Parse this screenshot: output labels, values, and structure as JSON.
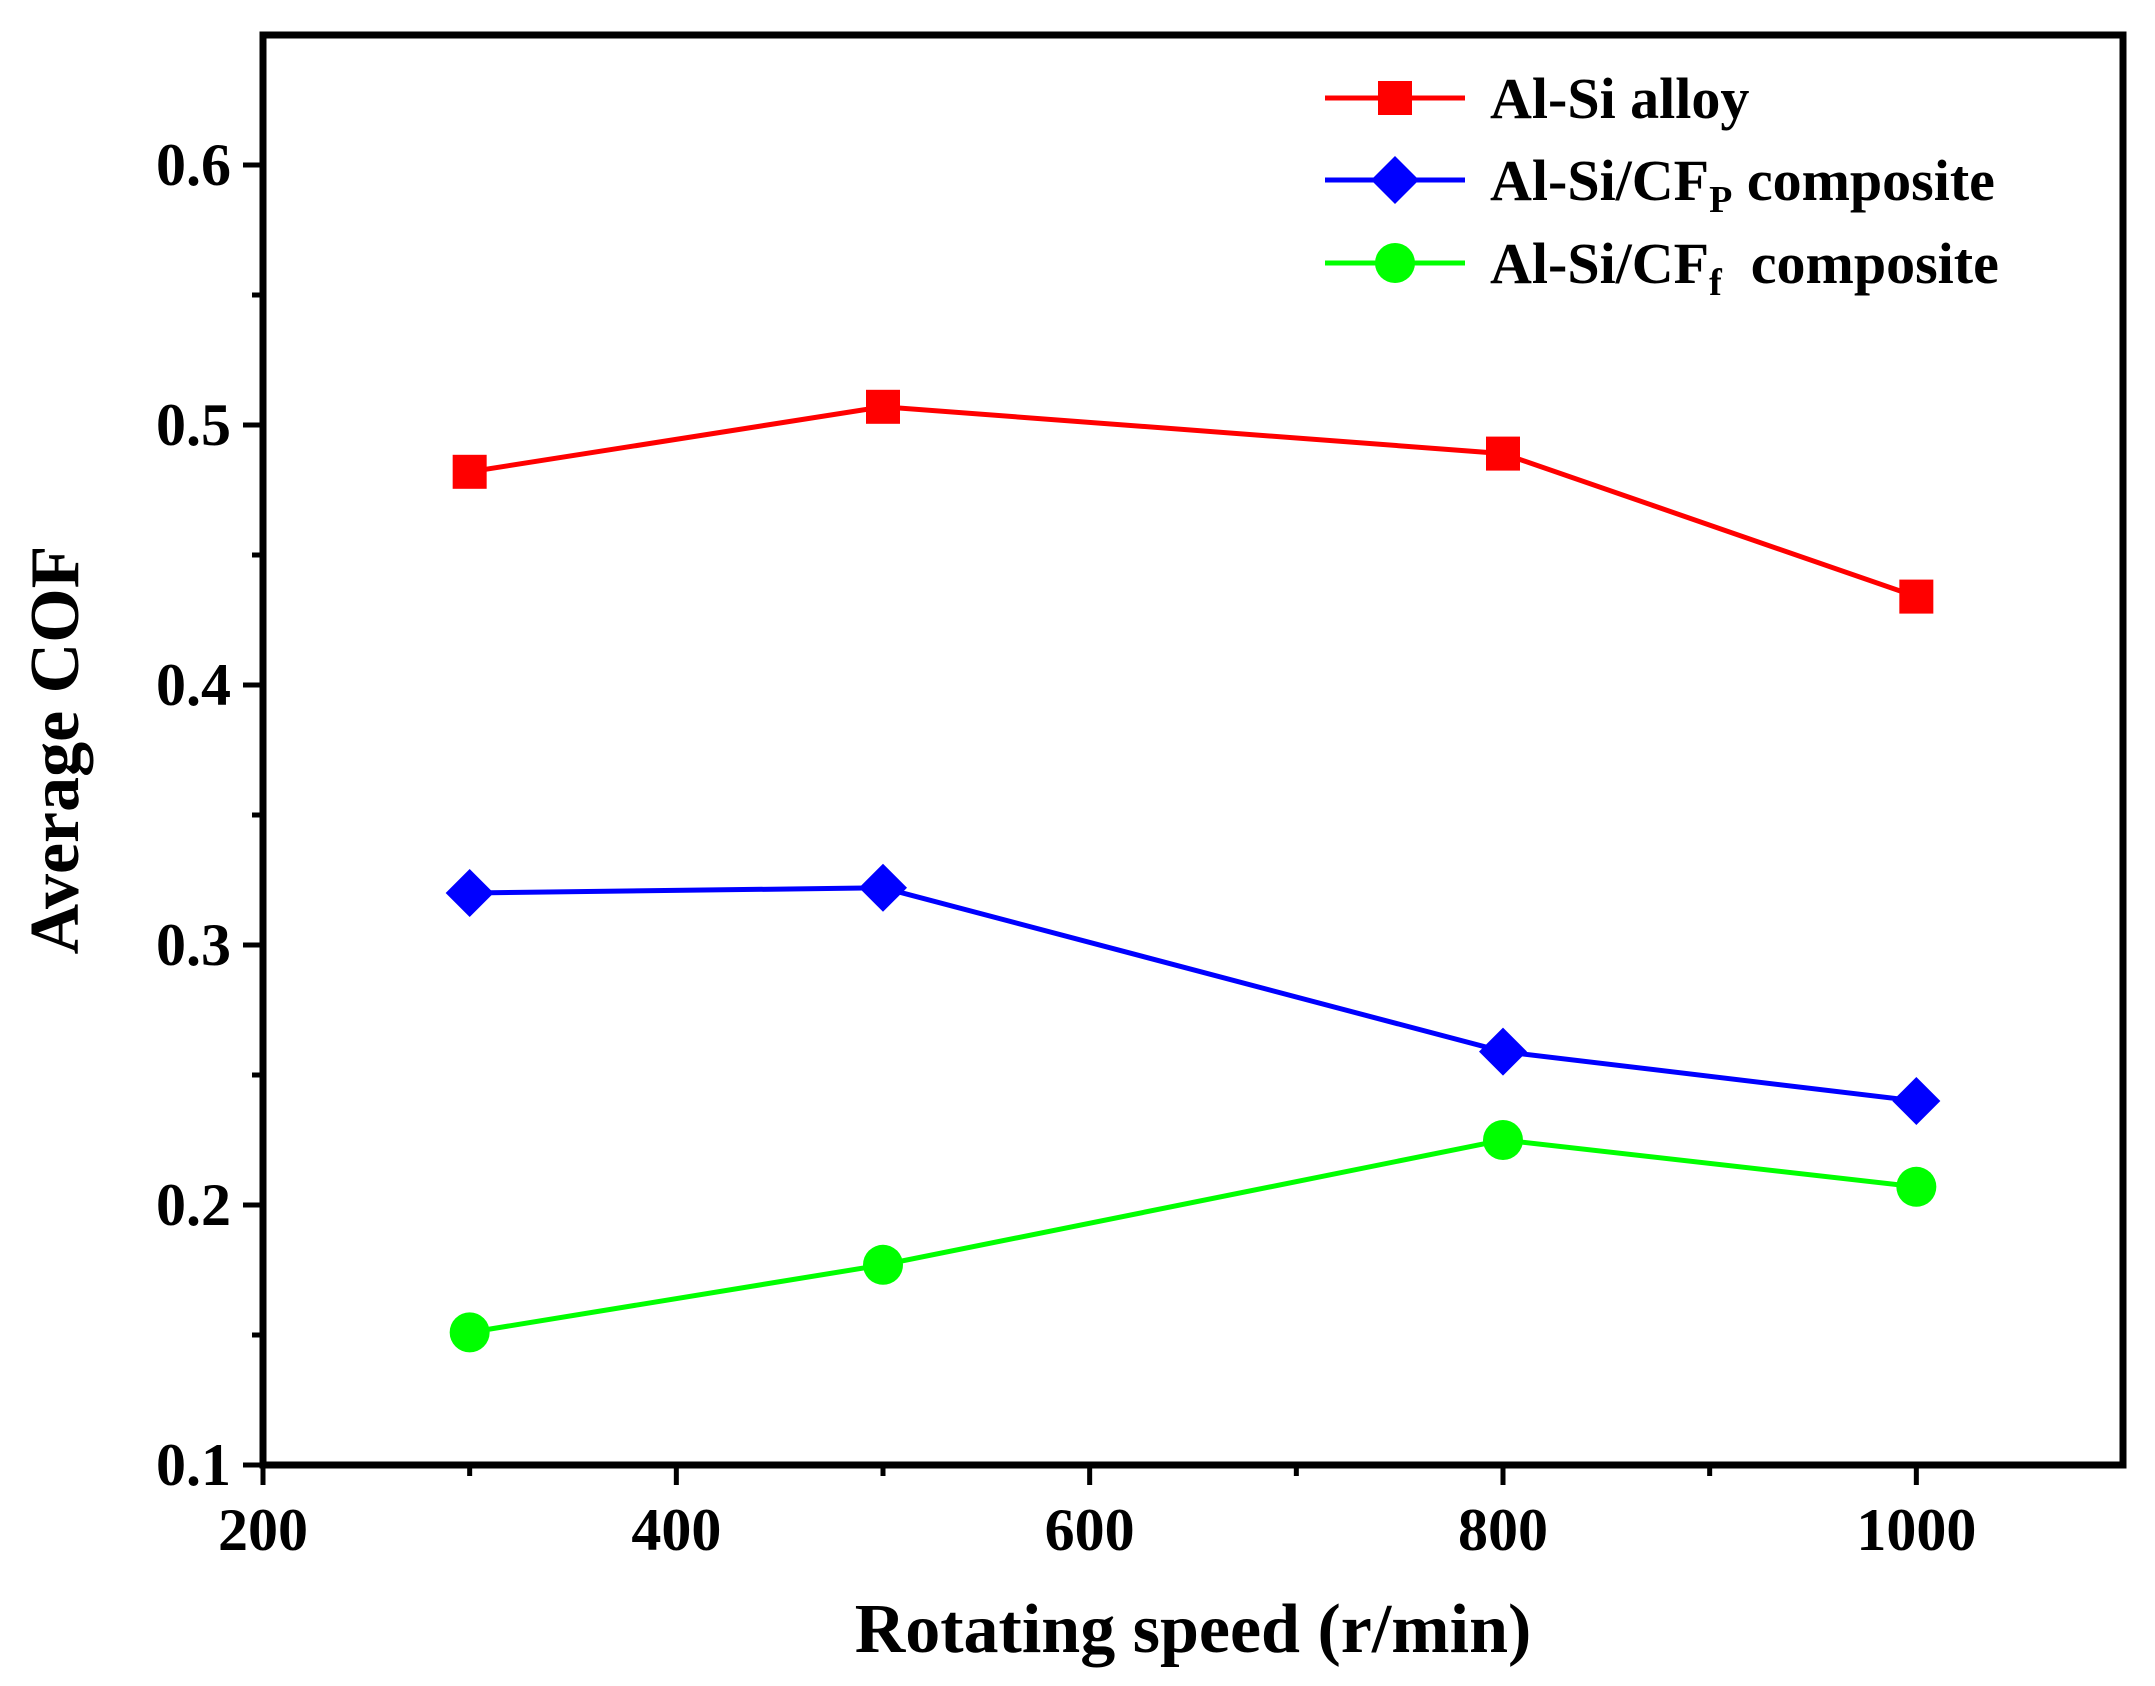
{
  "chart_data": {
    "type": "line",
    "title": "",
    "xlabel": "Rotating speed (r/min)",
    "ylabel": "Average COF",
    "xlim": [
      200,
      1100
    ],
    "ylim": [
      0.1,
      0.65
    ],
    "xticks": [
      200,
      400,
      600,
      800,
      1000
    ],
    "yticks": [
      0.1,
      0.2,
      0.3,
      0.4,
      0.5,
      0.6
    ],
    "xtick_labels": [
      "200",
      "400",
      "600",
      "800",
      "1000"
    ],
    "ytick_labels": [
      "0.1",
      "0.2",
      "0.3",
      "0.4",
      "0.5",
      "0.6"
    ],
    "x": [
      300,
      500,
      800,
      1000
    ],
    "legend_position": "top-right",
    "series": [
      {
        "name": "Al-Si alloy",
        "name_main": "Al-Si alloy",
        "name_sub": "",
        "name_tail": "",
        "color": "#ff0000",
        "marker": "square",
        "values": [
          0.482,
          0.507,
          0.489,
          0.434
        ]
      },
      {
        "name": "Al-Si/CFP composite",
        "name_main": "Al-Si/CF",
        "name_sub": "P",
        "name_tail": " composite",
        "color": "#0000ff",
        "marker": "diamond",
        "values": [
          0.32,
          0.322,
          0.259,
          0.24
        ]
      },
      {
        "name": "Al-Si/CFf composite",
        "name_main": "Al-Si/CF",
        "name_sub": "f",
        "name_tail": "  composite",
        "color": "#00ff00",
        "marker": "circle",
        "values": [
          0.151,
          0.177,
          0.225,
          0.207
        ]
      }
    ]
  }
}
